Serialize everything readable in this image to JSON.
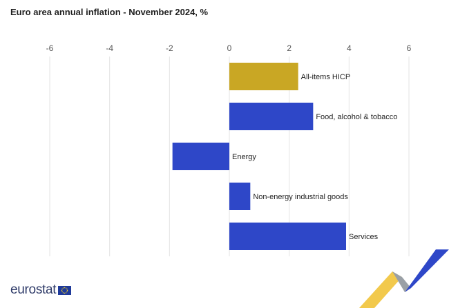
{
  "chart_data": {
    "type": "bar",
    "orientation": "horizontal",
    "title": "Euro area annual inflation - November 2024, %",
    "categories": [
      "All-items HICP",
      "Food, alcohol & tobacco",
      "Energy",
      "Non-energy industrial goods",
      "Services"
    ],
    "values": [
      2.3,
      2.8,
      -1.9,
      0.7,
      3.9
    ],
    "colors": [
      "#c9a724",
      "#2e47c8",
      "#2e47c8",
      "#2e47c8",
      "#2e47c8"
    ],
    "xlim": [
      -6,
      6
    ],
    "xticks": [
      "-6",
      "-4",
      "-2",
      "0",
      "2",
      "4",
      "6"
    ],
    "xtick_values": [
      -6,
      -4,
      -2,
      0,
      2,
      4,
      6
    ],
    "grid": "vertical",
    "xlabel": "",
    "ylabel": ""
  },
  "branding": {
    "logo_text": "eurostat",
    "flag_color": "#1f3a9a",
    "star_color": "#f5d428",
    "swoosh_yellow": "#f2c94c",
    "swoosh_blue": "#2e47c8",
    "swoosh_grey": "#9aa0a6"
  }
}
